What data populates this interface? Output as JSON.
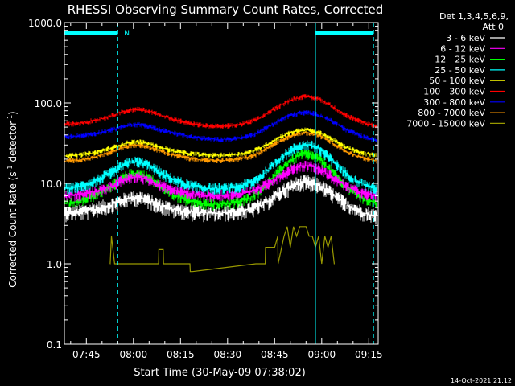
{
  "chart_data": {
    "type": "line",
    "title": "RHESSI Observing Summary Count Rates, Corrected",
    "ylabel_parts": [
      "Corrected Count Rate (s",
      "-1",
      " detector",
      "-1",
      ")"
    ],
    "xlabel": "Start Time (30-May-09 07:38:02)",
    "footer_date": "14-Oct-2021 21:12",
    "y_scale": "log",
    "ylim": [
      0.1,
      1000
    ],
    "y_ticks": [
      {
        "value": 0.1,
        "label": "0.1"
      },
      {
        "value": 1,
        "label": "1.0"
      },
      {
        "value": 10,
        "label": "10.0"
      },
      {
        "value": 100,
        "label": "100.0"
      },
      {
        "value": 1000,
        "label": "1000.0"
      }
    ],
    "xlim_minutes": [
      0,
      100
    ],
    "x_ticks": [
      {
        "minute": 7,
        "label": "07:45"
      },
      {
        "minute": 22,
        "label": "08:00"
      },
      {
        "minute": 37,
        "label": "08:15"
      },
      {
        "minute": 52,
        "label": "08:30"
      },
      {
        "minute": 67,
        "label": "08:45"
      },
      {
        "minute": 82,
        "label": "09:00"
      },
      {
        "minute": 97,
        "label": "09:15"
      }
    ],
    "legend_header": [
      "Det 1,3,4,5,6,9,",
      "Att 0"
    ],
    "legend_placement": "right",
    "series": [
      {
        "name": "3 - 6 keV",
        "color": "#ffffff",
        "x": [
          0,
          5,
          10,
          15,
          18,
          21,
          24,
          27,
          30,
          35,
          40,
          45,
          50,
          55,
          60,
          63,
          66,
          69,
          72,
          75,
          78,
          81,
          84,
          87,
          90,
          95,
          100
        ],
        "values": [
          4.3,
          4.4,
          4.8,
          5.4,
          6.0,
          6.6,
          6.7,
          6.1,
          5.4,
          4.7,
          4.4,
          4.3,
          4.3,
          4.4,
          4.8,
          5.4,
          6.4,
          7.8,
          9.0,
          10.2,
          10.3,
          9.5,
          8.0,
          6.5,
          5.4,
          4.3,
          3.9
        ]
      },
      {
        "name": "6 - 12 keV",
        "color": "#ff00ff",
        "x": [
          0,
          5,
          10,
          15,
          18,
          21,
          24,
          27,
          30,
          35,
          40,
          45,
          50,
          55,
          60,
          63,
          66,
          69,
          72,
          75,
          78,
          81,
          84,
          87,
          90,
          95,
          100
        ],
        "values": [
          7.0,
          7.2,
          7.9,
          9.2,
          10.6,
          11.8,
          12.0,
          11.0,
          9.6,
          8.2,
          7.5,
          7.1,
          7.1,
          7.3,
          8.0,
          9.0,
          10.6,
          12.6,
          14.6,
          16.5,
          16.7,
          15.4,
          13.0,
          10.8,
          9.1,
          7.5,
          6.9
        ]
      },
      {
        "name": "12 - 25 keV",
        "color": "#00ff00",
        "x": [
          0,
          5,
          10,
          15,
          18,
          21,
          24,
          27,
          30,
          35,
          40,
          45,
          50,
          55,
          60,
          63,
          66,
          69,
          72,
          75,
          78,
          81,
          84,
          87,
          90,
          95,
          100
        ],
        "values": [
          5.6,
          6.0,
          7.2,
          9.2,
          11.2,
          13.0,
          13.3,
          11.8,
          9.6,
          7.2,
          6.0,
          5.5,
          5.5,
          5.8,
          6.8,
          8.5,
          11.2,
          15.0,
          19.0,
          22.5,
          23.0,
          20.5,
          16.0,
          11.8,
          9.0,
          6.5,
          5.6
        ]
      },
      {
        "name": "25 - 50 keV",
        "color": "#00ffff",
        "x": [
          0,
          5,
          10,
          15,
          18,
          21,
          24,
          27,
          30,
          35,
          40,
          45,
          50,
          55,
          60,
          63,
          66,
          69,
          72,
          75,
          78,
          81,
          84,
          87,
          90,
          95,
          100
        ],
        "values": [
          8.6,
          9.2,
          10.8,
          13.6,
          16.0,
          18.3,
          18.6,
          16.8,
          14.0,
          11.0,
          9.4,
          8.7,
          8.6,
          9.0,
          10.4,
          12.6,
          16.0,
          20.8,
          25.6,
          29.5,
          30.0,
          27.0,
          21.8,
          16.6,
          13.0,
          9.8,
          8.4
        ]
      },
      {
        "name": "50 - 100 keV",
        "color": "#ffff00",
        "x": [
          0,
          5,
          10,
          15,
          18,
          21,
          24,
          27,
          30,
          35,
          40,
          45,
          50,
          55,
          60,
          63,
          66,
          69,
          72,
          75,
          78,
          81,
          84,
          87,
          90,
          95,
          100
        ],
        "values": [
          22.0,
          22.5,
          24.2,
          27.5,
          30.2,
          32.6,
          33.0,
          31.0,
          28.4,
          25.2,
          23.4,
          22.4,
          22.3,
          22.8,
          25.0,
          28.2,
          32.8,
          38.2,
          42.6,
          45.8,
          46.0,
          43.2,
          38.0,
          32.2,
          27.8,
          23.6,
          22.0
        ]
      },
      {
        "name": "100 - 300 keV",
        "color": "#ff0000",
        "x": [
          0,
          5,
          10,
          15,
          18,
          21,
          24,
          27,
          30,
          35,
          40,
          45,
          50,
          55,
          60,
          63,
          66,
          69,
          72,
          75,
          78,
          81,
          84,
          87,
          90,
          95,
          100
        ],
        "values": [
          54,
          56,
          61,
          69,
          76,
          82,
          83,
          79,
          72,
          62,
          56,
          52,
          51,
          53,
          59,
          68,
          80,
          94,
          108,
          118,
          119,
          112,
          98,
          82,
          70,
          57,
          51
        ]
      },
      {
        "name": "300 - 800 keV",
        "color": "#0000ff",
        "x": [
          0,
          5,
          10,
          15,
          18,
          21,
          24,
          27,
          30,
          35,
          40,
          45,
          50,
          55,
          60,
          63,
          66,
          69,
          72,
          75,
          78,
          81,
          84,
          87,
          90,
          95,
          100
        ],
        "values": [
          38,
          39,
          42,
          46,
          50,
          53,
          54,
          51,
          47,
          42,
          38,
          36,
          35,
          36,
          40,
          46,
          53,
          62,
          70,
          75,
          76,
          71,
          63,
          54,
          46,
          38,
          34
        ]
      },
      {
        "name": "800 - 7000 keV",
        "color": "#ff9900",
        "x": [
          0,
          5,
          10,
          15,
          18,
          21,
          24,
          27,
          30,
          35,
          40,
          45,
          50,
          55,
          60,
          63,
          66,
          69,
          72,
          75,
          78,
          81,
          84,
          87,
          90,
          95,
          100
        ],
        "values": [
          19.0,
          19.5,
          21.4,
          24.6,
          27.4,
          29.6,
          30.0,
          28.2,
          25.6,
          22.4,
          20.4,
          19.4,
          19.3,
          19.8,
          21.8,
          24.8,
          29.2,
          34.4,
          38.8,
          42.2,
          42.4,
          39.6,
          34.4,
          29.0,
          24.8,
          20.6,
          19.0
        ]
      },
      {
        "name": "7000 - 15000 keV",
        "color": "#999900",
        "x": [
          14.5,
          14.6,
          15.0,
          16.0,
          18.0,
          22.0,
          26.0,
          30.0,
          30.1,
          31.5,
          31.6,
          32.0,
          32.1,
          33.0,
          33.1,
          39.0,
          39.1,
          40.0,
          40.1,
          40.8,
          61.0,
          64.0,
          64.1,
          67.0,
          68.0,
          68.1,
          70.0,
          71.0,
          72.0,
          73.0,
          74.0,
          75.0,
          76.0,
          77.0,
          78.0,
          79.0,
          80.0,
          81.0,
          82.0,
          83.0,
          84.0,
          85.0,
          86.0,
          86.1
        ],
        "values": [
          1.0,
          1.0,
          2.2,
          1.0,
          1.0,
          1.0,
          1.0,
          1.0,
          1.5,
          1.5,
          1.0,
          1.0,
          1.0,
          1.0,
          1.0,
          1.0,
          1.0,
          1.0,
          0.8,
          0.8,
          1.0,
          1.0,
          1.6,
          1.6,
          2.2,
          1.0,
          2.2,
          2.9,
          1.6,
          2.9,
          2.2,
          2.9,
          2.9,
          2.9,
          2.2,
          2.2,
          1.6,
          2.2,
          1.0,
          2.2,
          1.6,
          2.2,
          1.0,
          1.0
        ]
      }
    ],
    "flag_bar_label": "N",
    "flag_bars": [
      {
        "start": 0,
        "end": 17
      },
      {
        "start": 80,
        "end": 98.5
      }
    ],
    "event_lines": [
      {
        "minute": 0,
        "style": "solid"
      },
      {
        "minute": 17,
        "style": "dashed"
      },
      {
        "minute": 80,
        "style": "solid"
      },
      {
        "minute": 98.5,
        "style": "dashed"
      }
    ]
  }
}
